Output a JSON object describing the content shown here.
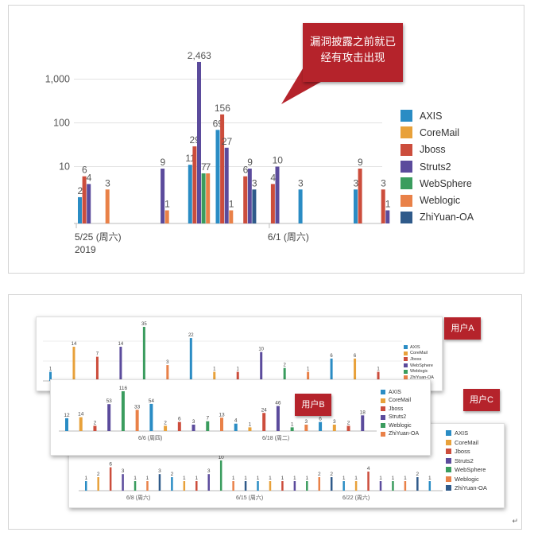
{
  "top": {
    "callout": "漏洞披露之前就已经有攻击出现",
    "callout_lines": [
      "漏洞披露之前就已",
      "经有攻击出现"
    ],
    "chart_data": {
      "type": "bar",
      "y_scale": "log",
      "yticks": [
        "10",
        "100",
        "1,000"
      ],
      "x_tick_labels": [
        {
          "date": "5/25",
          "label": "5/25 (周六)",
          "year": "2019"
        },
        {
          "date": "6/1",
          "label": "6/1 (周六)"
        }
      ],
      "series": [
        {
          "name": "AXIS",
          "color": "#2a8cc4"
        },
        {
          "name": "CoreMail",
          "color": "#e8a13a"
        },
        {
          "name": "Jboss",
          "color": "#cc4d3c"
        },
        {
          "name": "Struts2",
          "color": "#5b4b9c"
        },
        {
          "name": "WebSphere",
          "color": "#3a9c5e"
        },
        {
          "name": "Weblogic",
          "color": "#e98148"
        },
        {
          "name": "ZhiYuan-OA",
          "color": "#2f5a8a"
        }
      ],
      "bars": [
        {
          "date": "5/25",
          "series": "AXIS",
          "value": 2,
          "label": "2"
        },
        {
          "date": "5/25",
          "series": "Jboss",
          "value": 6,
          "label": "6"
        },
        {
          "date": "5/25",
          "series": "Struts2",
          "value": 4,
          "label": "4"
        },
        {
          "date": "5/26",
          "series": "Weblogic",
          "value": 3,
          "label": "3"
        },
        {
          "date": "5/28",
          "series": "Struts2",
          "value": 9,
          "label": "9"
        },
        {
          "date": "5/28",
          "series": "Weblogic",
          "value": 1,
          "label": "1"
        },
        {
          "date": "5/29",
          "series": "AXIS",
          "value": 11,
          "label": "11"
        },
        {
          "date": "5/29",
          "series": "Jboss",
          "value": 29,
          "label": "29"
        },
        {
          "date": "5/29",
          "series": "Struts2",
          "value": 2463,
          "label": "2,463"
        },
        {
          "date": "5/29",
          "series": "WebSphere",
          "value": 7,
          "label": "7"
        },
        {
          "date": "5/29",
          "series": "Weblogic",
          "value": 7,
          "label": "7"
        },
        {
          "date": "5/30",
          "series": "AXIS",
          "value": 69,
          "label": "69"
        },
        {
          "date": "5/30",
          "series": "Jboss",
          "value": 156,
          "label": "156"
        },
        {
          "date": "5/30",
          "series": "Struts2",
          "value": 27,
          "label": "27"
        },
        {
          "date": "5/30",
          "series": "Weblogic",
          "value": 1,
          "label": "1"
        },
        {
          "date": "5/31",
          "series": "Jboss",
          "value": 6,
          "label": "6"
        },
        {
          "date": "5/31",
          "series": "Struts2",
          "value": 9,
          "label": "9"
        },
        {
          "date": "5/31",
          "series": "ZhiYuan-OA",
          "value": 3,
          "label": "3"
        },
        {
          "date": "6/1",
          "series": "Jboss",
          "value": 4,
          "label": "4"
        },
        {
          "date": "6/1",
          "series": "Struts2",
          "value": 10,
          "label": "10"
        },
        {
          "date": "6/2",
          "series": "AXIS",
          "value": 3,
          "label": "3"
        },
        {
          "date": "6/4",
          "series": "AXIS",
          "value": 3,
          "label": "3"
        },
        {
          "date": "6/4",
          "series": "Jboss",
          "value": 9,
          "label": "9"
        },
        {
          "date": "6/5",
          "series": "Jboss",
          "value": 3,
          "label": "3"
        },
        {
          "date": "6/5",
          "series": "Struts2",
          "value": 1,
          "label": "1"
        }
      ]
    }
  },
  "bottom": {
    "users": {
      "a": {
        "label": "用户A",
        "legend": [
          {
            "name": "AXIS",
            "color": "#2a8cc4"
          },
          {
            "name": "CoreMail",
            "color": "#e8a13a"
          },
          {
            "name": "Jboss",
            "color": "#cc4d3c"
          },
          {
            "name": "WebSphere",
            "color": "#5b4b9c"
          },
          {
            "name": "Weblogic",
            "color": "#3a9c5e"
          },
          {
            "name": "ZhiYuan-OA",
            "color": "#e98148"
          }
        ],
        "value_labels": [
          "1",
          "14",
          "7",
          "14",
          "35",
          "3",
          "22",
          "1",
          "1",
          "10",
          "2",
          "1",
          "6",
          "6",
          "1"
        ]
      },
      "b": {
        "label": "用户B",
        "legend": [
          {
            "name": "AXIS",
            "color": "#2a8cc4"
          },
          {
            "name": "CoreMail",
            "color": "#e8a13a"
          },
          {
            "name": "Jboss",
            "color": "#cc4d3c"
          },
          {
            "name": "Struts2",
            "color": "#5b4b9c"
          },
          {
            "name": "Weblogic",
            "color": "#3a9c5e"
          },
          {
            "name": "ZhiYuan-OA",
            "color": "#e98148"
          }
        ],
        "x_tick_labels": [
          "6/6 (周四)",
          "6/18 (周二)"
        ],
        "value_labels": [
          "12",
          "14",
          "2",
          "53",
          "116",
          "33",
          "54",
          "2",
          "6",
          "3",
          "7",
          "13",
          "4",
          "1",
          "24",
          "46",
          "1",
          "3",
          "6",
          "3",
          "2",
          "18"
        ]
      },
      "c": {
        "label": "用户C",
        "legend": [
          {
            "name": "AXIS",
            "color": "#2a8cc4"
          },
          {
            "name": "CoreMail",
            "color": "#e8a13a"
          },
          {
            "name": "Jboss",
            "color": "#cc4d3c"
          },
          {
            "name": "Struts2",
            "color": "#5b4b9c"
          },
          {
            "name": "WebSphere",
            "color": "#3a9c5e"
          },
          {
            "name": "Weblogic",
            "color": "#e98148"
          },
          {
            "name": "ZhiYuan-OA",
            "color": "#2f5a8a"
          }
        ],
        "x_tick_labels": [
          "6/8 (周六)",
          "6/15 (周六)",
          "6/22 (周六)"
        ],
        "value_labels": [
          "1",
          "2",
          "6",
          "3",
          "1",
          "1",
          "3",
          "2",
          "1",
          "1",
          "3",
          "10",
          "1",
          "1",
          "1",
          "1",
          "1",
          "1",
          "1",
          "2",
          "2",
          "1",
          "1",
          "4",
          "1",
          "1",
          "1",
          "2",
          "1"
        ]
      }
    },
    "corner_mark": "↵"
  }
}
